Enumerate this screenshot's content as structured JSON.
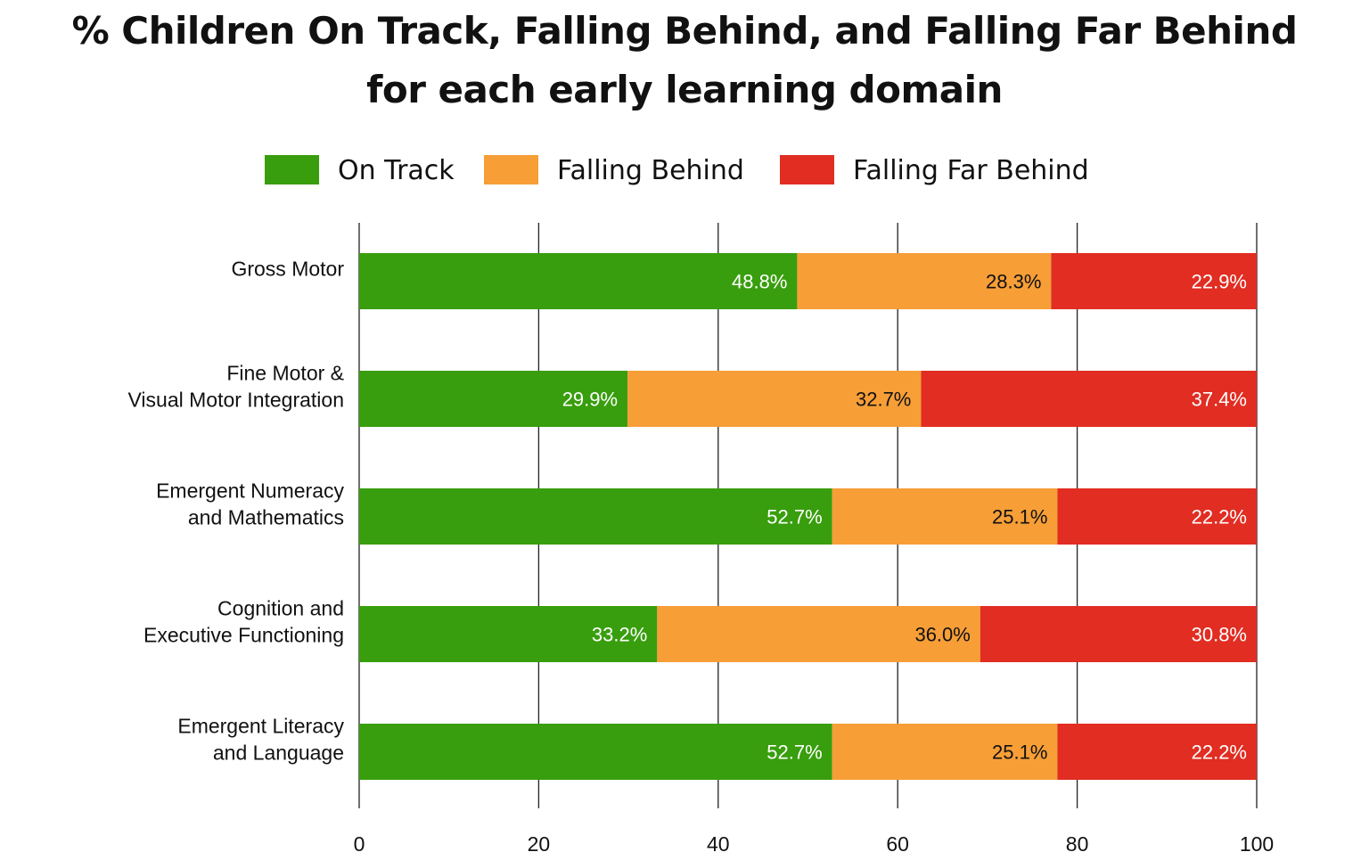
{
  "chart_data": {
    "type": "bar",
    "orientation": "horizontal",
    "stacked": true,
    "title": "% Children On Track, Falling Behind, and Falling Far Behind",
    "subtitle": "for each early learning domain",
    "categories": [
      [
        "Gross Motor"
      ],
      [
        "Fine Motor &",
        "Visual Motor Integration"
      ],
      [
        "Emergent Numeracy",
        "and Mathematics"
      ],
      [
        "Cognition and",
        "Executive Functioning"
      ],
      [
        "Emergent Literacy",
        "and Language"
      ]
    ],
    "series": [
      {
        "name": "On Track",
        "color": "#389e0d",
        "label_color": "#ffffff",
        "values": [
          48.8,
          29.9,
          52.7,
          33.2,
          52.7
        ],
        "labels": [
          "48.8%",
          "29.9%",
          "52.7%",
          "33.2%",
          "52.7%"
        ]
      },
      {
        "name": "Falling Behind",
        "color": "#f79e37",
        "label_color": "#111111",
        "values": [
          28.3,
          32.7,
          25.1,
          36.0,
          25.1
        ],
        "labels": [
          "28.3%",
          "32.7%",
          "25.1%",
          "36.0%",
          "25.1%"
        ]
      },
      {
        "name": "Falling Far Behind",
        "color": "#e12d22",
        "label_color": "#ffffff",
        "values": [
          22.9,
          37.4,
          22.2,
          30.8,
          22.2
        ],
        "labels": [
          "22.9%",
          "37.4%",
          "22.2%",
          "30.8%",
          "22.2%"
        ]
      }
    ],
    "xlim": [
      0,
      100
    ],
    "xticks": [
      "0",
      "20",
      "40",
      "60",
      "80",
      "100"
    ],
    "grid": true,
    "legend_position": "top-center"
  }
}
